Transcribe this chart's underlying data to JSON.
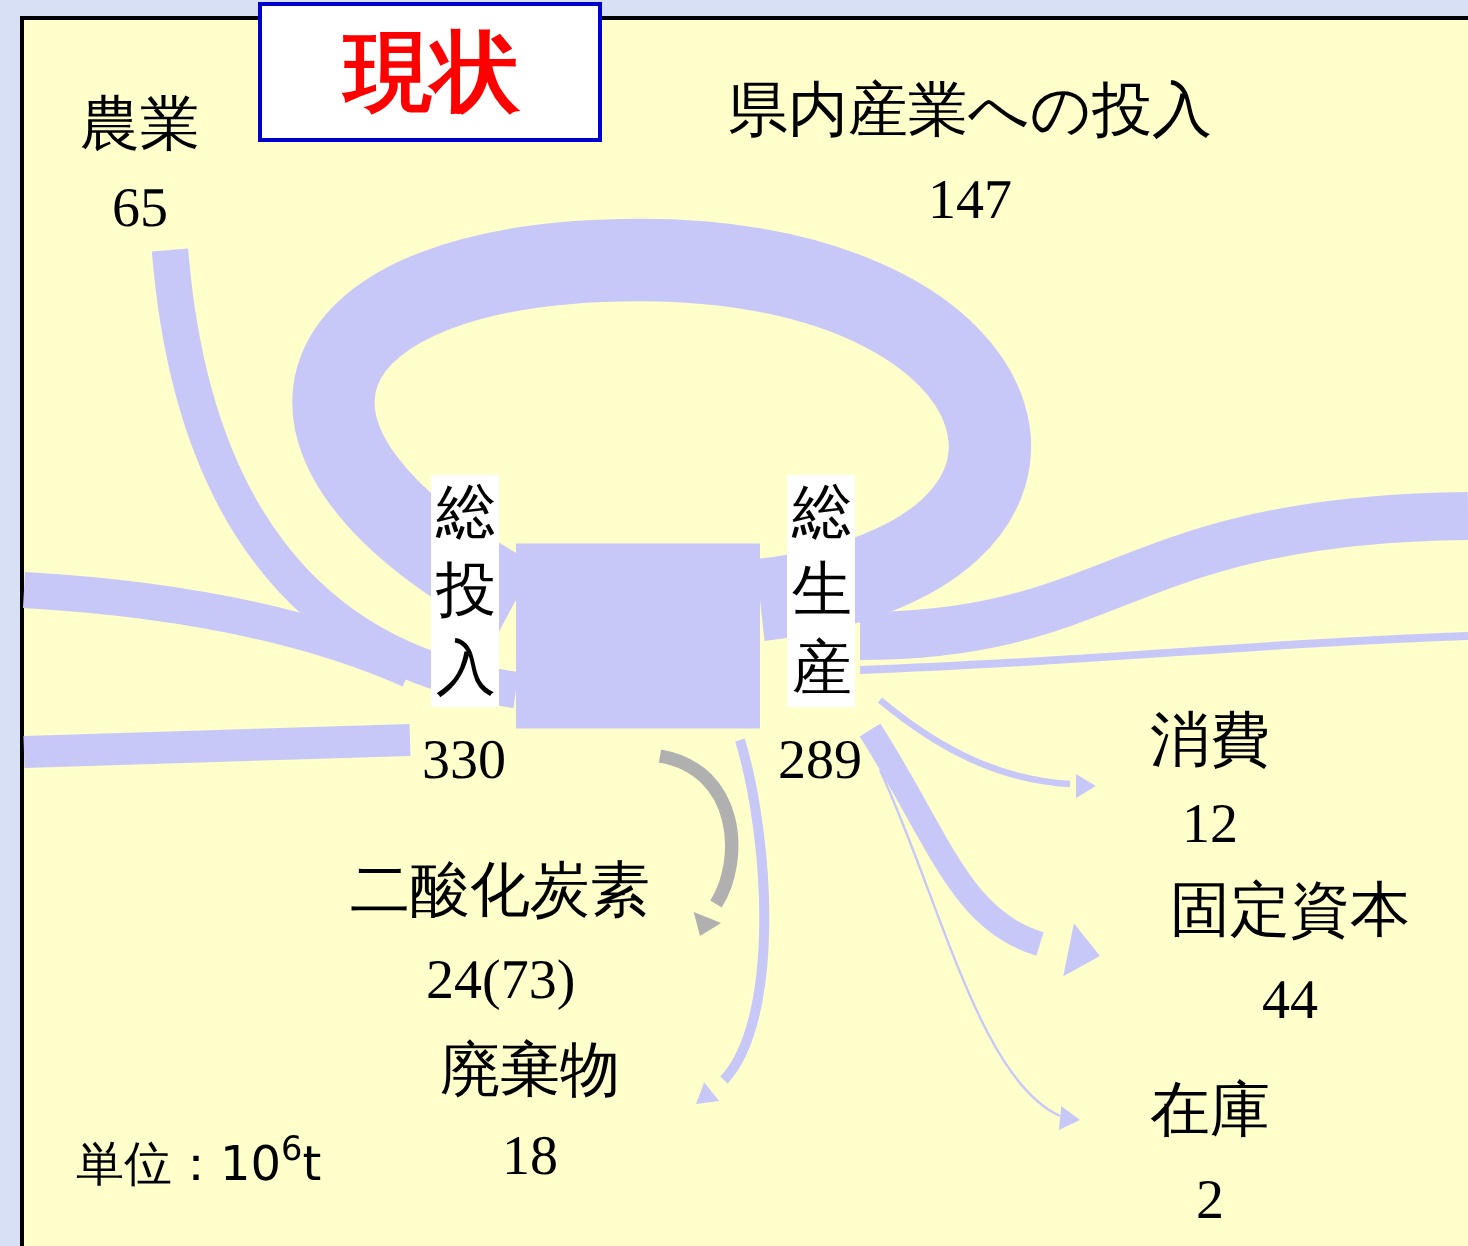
{
  "chart_data": {
    "type": "other",
    "title": "現状",
    "categories": [
      "農業",
      "県内産業への投入",
      "総投入",
      "総生産",
      "消費",
      "固定資本",
      "二酸化炭素",
      "廃棄物",
      "在庫"
    ],
    "values": [
      65,
      147,
      330,
      289,
      12,
      44,
      24,
      18,
      2
    ],
    "value_labels": [
      "65",
      "147",
      "330",
      "289",
      "12",
      "44",
      "24(73)",
      "18",
      "2"
    ],
    "colors": [
      "#c8c8f8",
      "#c8c8f8",
      "#c8c8f8",
      "#c8c8f8",
      "#c8c8f8",
      "#c8c8f8",
      "#b0b0b0",
      "#c8c8f8",
      "#c8c8f8"
    ],
    "annotations": [
      "単位：10$^{6}$t"
    ]
  }
}
